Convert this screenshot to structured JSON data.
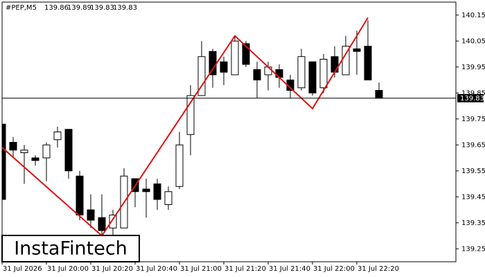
{
  "chart_data": {
    "type": "candlestick",
    "title": "#PEP,M5",
    "categories": [
      "31 Jul 2026",
      null,
      null,
      null,
      "31 Jul 20:00",
      null,
      null,
      null,
      "31 Jul 20:20",
      null,
      null,
      null,
      "31 Jul 20:40",
      null,
      null,
      null,
      "31 Jul 21:00",
      null,
      null,
      null,
      "31 Jul 21:20",
      null,
      null,
      null,
      "31 Jul 21:40",
      null,
      null,
      null,
      "31 Jul 22:00",
      null,
      null,
      null,
      "31 Jul 22:20",
      null,
      null
    ],
    "open": [
      139.73,
      139.66,
      139.62,
      139.6,
      139.6,
      139.67,
      139.71,
      139.53,
      139.4,
      139.37,
      139.33,
      139.33,
      139.52,
      139.48,
      139.5,
      139.42,
      139.49,
      139.69,
      139.84,
      140.01,
      139.97,
      139.92,
      140.04,
      139.94,
      139.92,
      139.94,
      139.9,
      139.87,
      139.97,
      139.87,
      139.99,
      139.92,
      140.02,
      140.03,
      139.86
    ],
    "high": [
      139.74,
      139.68,
      139.65,
      139.61,
      139.66,
      139.72,
      139.71,
      139.55,
      139.46,
      139.46,
      139.4,
      139.56,
      139.52,
      139.52,
      139.52,
      139.49,
      139.7,
      139.88,
      140.05,
      140.02,
      139.99,
      140.07,
      140.05,
      139.97,
      139.97,
      139.96,
      139.92,
      140.02,
      139.97,
      140.0,
      140.03,
      140.07,
      140.09,
      140.13,
      139.89
    ],
    "low": [
      139.44,
      139.6,
      139.5,
      139.57,
      139.51,
      139.64,
      139.52,
      139.36,
      139.33,
      139.3,
      139.3,
      139.33,
      139.41,
      139.37,
      139.4,
      139.4,
      139.48,
      139.61,
      139.84,
      139.87,
      139.88,
      139.92,
      139.95,
      139.83,
      139.86,
      139.87,
      139.83,
      139.86,
      139.84,
      139.85,
      139.91,
      139.92,
      139.92,
      139.9,
      139.83
    ],
    "close": [
      139.44,
      139.63,
      139.63,
      139.59,
      139.65,
      139.7,
      139.55,
      139.38,
      139.36,
      139.32,
      139.38,
      139.53,
      139.47,
      139.47,
      139.44,
      139.47,
      139.65,
      139.84,
      139.99,
      139.92,
      139.93,
      140.05,
      139.96,
      139.9,
      139.95,
      139.91,
      139.86,
      139.99,
      139.85,
      139.98,
      139.93,
      140.03,
      140.01,
      139.9,
      139.83
    ],
    "ylim": [
      139.2,
      140.2
    ],
    "yticks": [
      140.15,
      140.05,
      139.95,
      139.85,
      139.75,
      139.65,
      139.55,
      139.45,
      139.35,
      139.25
    ],
    "pattern": {
      "color": "#e01010",
      "x": [
        0,
        9,
        21,
        28,
        33
      ],
      "values": [
        139.64,
        139.3,
        140.07,
        139.79,
        140.14
      ]
    },
    "bull_color": "#ffffff",
    "bear_color": "#000000",
    "watermark": "InstaFintech"
  }
}
